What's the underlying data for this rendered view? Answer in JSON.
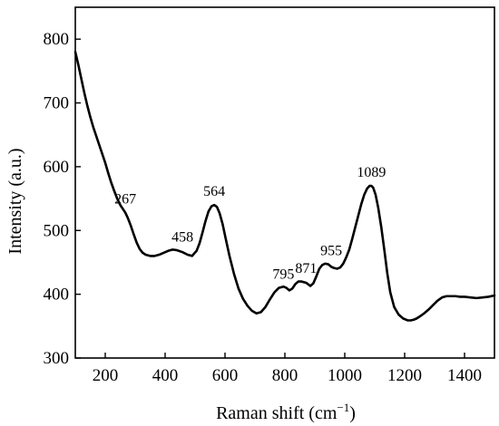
{
  "chart_data": {
    "type": "line",
    "xlabel": "Raman shift (cm",
    "xlabel_superscript": "−1",
    "xlabel_close": ")",
    "ylabel": "Intensity (a.u.)",
    "xlim": [
      100,
      1500
    ],
    "ylim": [
      300,
      850
    ],
    "xticks": [
      200,
      400,
      600,
      800,
      1000,
      1200,
      1400
    ],
    "yticks": [
      300,
      400,
      500,
      600,
      700,
      800
    ],
    "grid": false,
    "series": [
      {
        "color": "#000000",
        "x": [
          100,
          110,
          120,
          130,
          140,
          150,
          160,
          170,
          180,
          190,
          200,
          210,
          220,
          230,
          240,
          250,
          260,
          267,
          275,
          285,
          295,
          305,
          315,
          325,
          335,
          350,
          365,
          380,
          395,
          410,
          425,
          440,
          458,
          475,
          490,
          505,
          515,
          525,
          535,
          545,
          555,
          564,
          573,
          582,
          592,
          602,
          615,
          630,
          645,
          660,
          675,
          690,
          705,
          720,
          735,
          750,
          765,
          780,
          795,
          805,
          815,
          825,
          835,
          845,
          855,
          871,
          885,
          895,
          905,
          915,
          925,
          935,
          945,
          955,
          965,
          975,
          985,
          995,
          1005,
          1015,
          1025,
          1035,
          1045,
          1055,
          1065,
          1075,
          1083,
          1089,
          1095,
          1103,
          1112,
          1122,
          1132,
          1142,
          1152,
          1165,
          1180,
          1195,
          1210,
          1220,
          1230,
          1240,
          1250,
          1265,
          1280,
          1295,
          1310,
          1325,
          1340,
          1355,
          1370,
          1385,
          1400,
          1420,
          1440,
          1460,
          1480,
          1500
        ],
        "y": [
          780,
          760,
          738,
          716,
          696,
          678,
          662,
          648,
          634,
          620,
          606,
          590,
          575,
          562,
          550,
          540,
          533,
          528,
          520,
          508,
          494,
          481,
          471,
          465,
          462,
          460,
          460,
          462,
          465,
          468,
          470,
          469,
          466,
          462,
          460,
          468,
          480,
          497,
          515,
          530,
          538,
          540,
          537,
          527,
          510,
          488,
          460,
          432,
          409,
          393,
          382,
          374,
          370,
          372,
          380,
          392,
          403,
          410,
          412,
          410,
          406,
          409,
          416,
          420,
          420,
          418,
          413,
          417,
          428,
          440,
          446,
          448,
          447,
          443,
          441,
          440,
          442,
          448,
          458,
          470,
          487,
          505,
          523,
          541,
          556,
          566,
          570,
          570,
          567,
          556,
          535,
          505,
          470,
          433,
          403,
          380,
          368,
          362,
          359,
          359,
          360,
          362,
          365,
          370,
          376,
          383,
          390,
          395,
          397,
          397,
          397,
          396,
          396,
          395,
          394,
          395,
          396,
          398
        ]
      }
    ],
    "annotations": [
      {
        "text": "267",
        "x": 267,
        "y": 534
      },
      {
        "text": "458",
        "x": 458,
        "y": 474
      },
      {
        "text": "564",
        "x": 564,
        "y": 546
      },
      {
        "text": "795",
        "x": 795,
        "y": 416
      },
      {
        "text": "871",
        "x": 871,
        "y": 425
      },
      {
        "text": "955",
        "x": 955,
        "y": 453
      },
      {
        "text": "1089",
        "x": 1089,
        "y": 576
      }
    ]
  }
}
